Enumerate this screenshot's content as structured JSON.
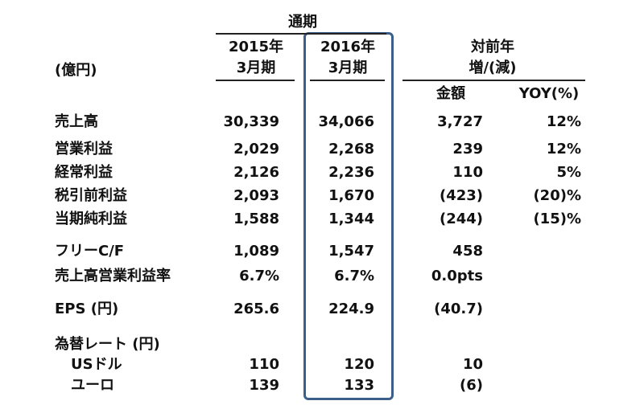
{
  "header": {
    "period": "通期",
    "unit": "(億円)",
    "col2015": [
      "2015年",
      "3月期"
    ],
    "col2016": [
      "2016年",
      "3月期"
    ],
    "change": [
      "対前年",
      "増/(減)"
    ],
    "amount": "金額",
    "yoy": "YOY(%)"
  },
  "table": {
    "rows": [
      [
        "売上高",
        "30,339",
        "34,066",
        "3,727",
        "12%"
      ],
      [
        "営業利益",
        "2,029",
        "2,268",
        "239",
        "12%"
      ],
      [
        "経常利益",
        "2,126",
        "2,236",
        "110",
        "5%"
      ],
      [
        "税引前利益",
        "2,093",
        "1,670",
        "(423)",
        "(20)%"
      ],
      [
        "当期純利益",
        "1,588",
        "1,344",
        "(244)",
        "(15)%"
      ],
      [
        "フリーC/F",
        "1,089",
        "1,547",
        "458",
        null
      ],
      [
        "売上高営業利益率",
        "6.7%",
        "6.7%",
        "0.0pts",
        null
      ],
      [
        "EPS (円)",
        "265.6",
        "224.9",
        "(40.7)",
        null
      ],
      [
        "為替レート (円)",
        null,
        null,
        null,
        null
      ],
      [
        "USドル",
        "110",
        "120",
        "10",
        null
      ],
      [
        "ユーロ",
        "139",
        "133",
        "(6)",
        null
      ]
    ]
  }
}
